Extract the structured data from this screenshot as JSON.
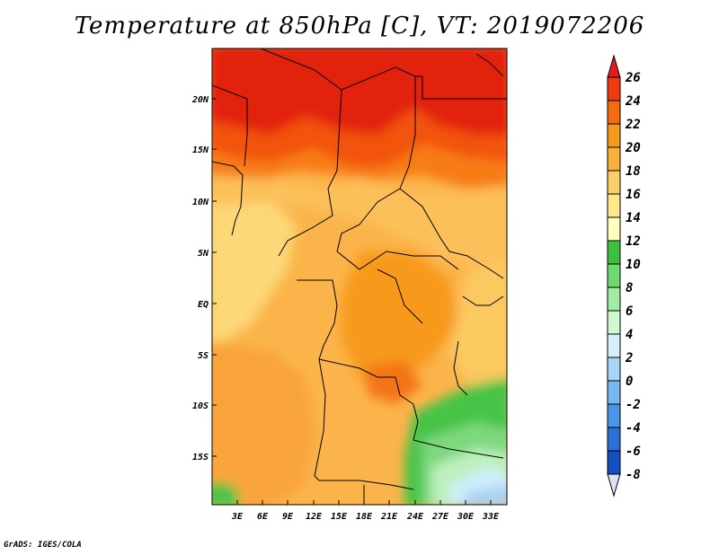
{
  "title": "Temperature at 850hPa [C], VT: 2019072206",
  "credit": "GrADS: IGES/COLA",
  "map": {
    "lat_ticks": [
      "20N",
      "15N",
      "10N",
      "5N",
      "EQ",
      "5S",
      "10S",
      "15S"
    ],
    "lon_ticks": [
      "3E",
      "6E",
      "9E",
      "12E",
      "15E",
      "18E",
      "21E",
      "24E",
      "27E",
      "30E",
      "33E"
    ],
    "lat_range": [
      -20,
      25
    ],
    "lon_range": [
      0,
      35
    ]
  },
  "colorbar": {
    "levels": [
      "26",
      "24",
      "22",
      "20",
      "18",
      "16",
      "14",
      "12",
      "10",
      "8",
      "6",
      "4",
      "2",
      "0",
      "-2",
      "-4",
      "-6",
      "-8"
    ],
    "colors": [
      "#e41a1c",
      "#f03c0c",
      "#f46c10",
      "#f79a1a",
      "#fab23e",
      "#fcd068",
      "#fde88e",
      "#ffffbe",
      "#3ec03e",
      "#6fd86f",
      "#a0eca0",
      "#d2f8d2",
      "#d8f0fa",
      "#a9d6f7",
      "#78b8f0",
      "#4a96e6",
      "#2a70d6",
      "#1550c2",
      "#0a2ea0",
      "#060f6e",
      "#e0e0f4"
    ],
    "max_color": "#e41a1c",
    "min_color": "#e0e0f4"
  }
}
